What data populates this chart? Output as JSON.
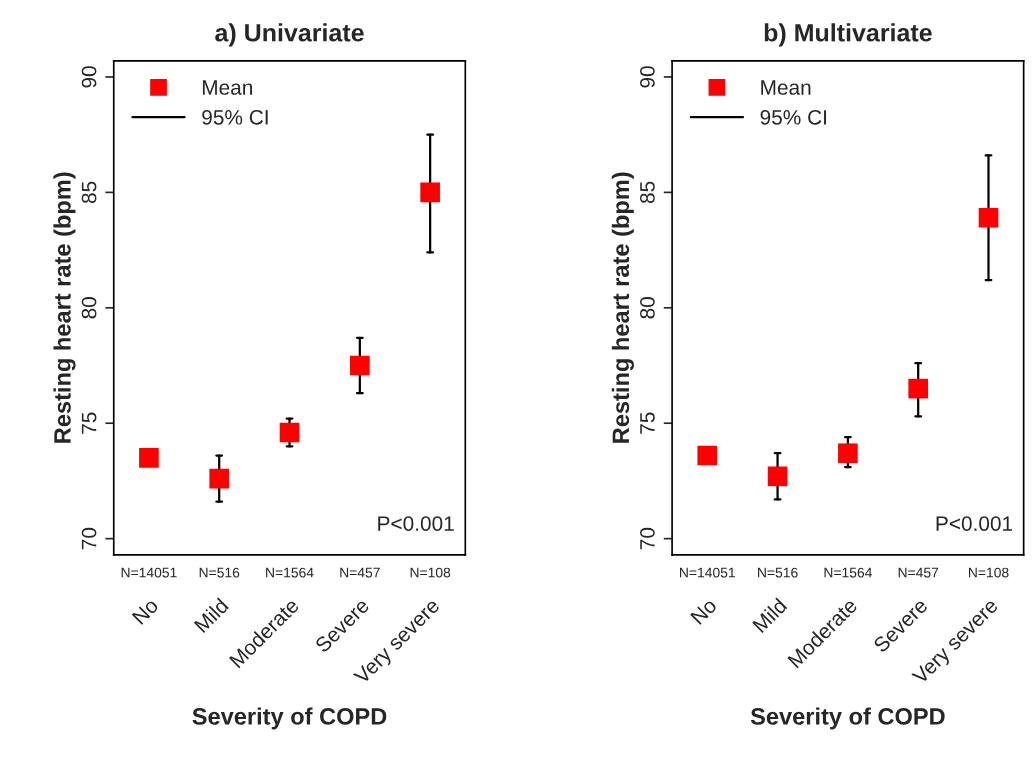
{
  "chart_data": [
    {
      "type": "scatter",
      "title": "a) Univariate",
      "xlabel": "Severity of COPD",
      "ylabel": "Resting heart rate (bpm)",
      "categories": [
        "No",
        "Mild",
        "Moderate",
        "Severe",
        "Very severe"
      ],
      "series": [
        {
          "name": "Mean",
          "color": "#ff0000",
          "values": [
            73.5,
            72.6,
            74.6,
            77.5,
            85.0
          ],
          "errors": [
            null,
            [
              71.6,
              73.6
            ],
            [
              74.0,
              75.2
            ],
            [
              76.3,
              78.7
            ],
            [
              82.4,
              87.5
            ]
          ]
        }
      ],
      "marker": "square",
      "ylim": [
        69.3,
        90.7
      ],
      "yticks": [
        70,
        75,
        80,
        85,
        90
      ],
      "grid": false,
      "legend": "top left",
      "annotations": [
        "95% CI",
        "P<0.001",
        "N=14051",
        "N=516",
        "N=1564",
        "N=457",
        "N=108"
      ]
    },
    {
      "type": "scatter",
      "title": "b) Multivariate",
      "xlabel": "Severity of COPD",
      "ylabel": "Resting heart rate (bpm)",
      "categories": [
        "No",
        "Mild",
        "Moderate",
        "Severe",
        "Very severe"
      ],
      "series": [
        {
          "name": "Mean",
          "color": "#ff0000",
          "values": [
            73.6,
            72.7,
            73.7,
            76.5,
            83.9
          ],
          "errors": [
            null,
            [
              71.7,
              73.7
            ],
            [
              73.1,
              74.4
            ],
            [
              75.3,
              77.6
            ],
            [
              81.2,
              86.6
            ]
          ]
        }
      ],
      "marker": "square",
      "ylim": [
        69.3,
        90.7
      ],
      "yticks": [
        70,
        75,
        80,
        85,
        90
      ],
      "grid": false,
      "legend": "top left",
      "annotations": [
        "95% CI",
        "P<0.001",
        "N=14051",
        "N=516",
        "N=1564",
        "N=457",
        "N=108"
      ]
    }
  ]
}
